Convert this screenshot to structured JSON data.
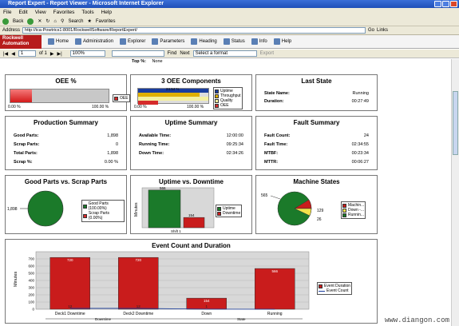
{
  "window": {
    "title": "Report Expert - Report Viewer - Microsoft Internet Explorer"
  },
  "menu": [
    "File",
    "Edit",
    "View",
    "Favorites",
    "Tools",
    "Help"
  ],
  "toolbar": {
    "back": "Back",
    "search": "Search",
    "favorites": "Favorites"
  },
  "address": {
    "label": "Address",
    "url": "http://ica-Powtrics1:8001/RockwellSoftware/ReportExpert/",
    "go": "Go",
    "links": "Links"
  },
  "app": {
    "logo_line1": "Rockwell",
    "logo_line2": "Automation",
    "nav": [
      "Home",
      "Administration",
      "Explorer",
      "Parameters",
      "Heading",
      "Status",
      "Info",
      "Help"
    ]
  },
  "report_bar": {
    "page": "1",
    "of": "of 1",
    "zoom": "100%",
    "find": "Find",
    "next": "Next",
    "format": "Select a format",
    "export": "Export"
  },
  "top_filter": {
    "label": "Top %:",
    "value": "None"
  },
  "oee": {
    "title": "OEE %",
    "min": "0.00 %",
    "max": "100.00 %",
    "legend": "OEE",
    "value_pct": 22
  },
  "oee_components": {
    "title": "3 OEE Components",
    "min": "0.00 %",
    "max": "100.00 %",
    "labels": [
      "0.00 %",
      "0.00 %",
      "24.54 %"
    ],
    "legend": [
      "Uptime",
      "Throughput",
      "Quality",
      "OEE"
    ],
    "colors": [
      "#1a3d9e",
      "#e0b000",
      "#f5f0a0",
      "#d52b2b"
    ]
  },
  "last_state": {
    "title": "Last State",
    "rows": [
      {
        "k": "State Name:",
        "v": "Running"
      },
      {
        "k": "Duration:",
        "v": "00:27:49"
      }
    ]
  },
  "production": {
    "title": "Production Summary",
    "rows": [
      {
        "k": "Good Parts:",
        "v": "1,898"
      },
      {
        "k": "Scrap Parts:",
        "v": "0"
      },
      {
        "k": "Total Parts:",
        "v": "1,898"
      },
      {
        "k": "Scrap %:",
        "v": "0.00 %"
      }
    ]
  },
  "uptime": {
    "title": "Uptime Summary",
    "rows": [
      {
        "k": "Available Time:",
        "v": "12:00:00"
      },
      {
        "k": "Running Time:",
        "v": "09:25:34"
      },
      {
        "k": "Down Time:",
        "v": "02:34:26"
      }
    ]
  },
  "fault": {
    "title": "Fault Summary",
    "rows": [
      {
        "k": "Fault Count:",
        "v": "24"
      },
      {
        "k": "Fault Time:",
        "v": "02:34:55"
      },
      {
        "k": "MTBF:",
        "v": "00:23:34"
      },
      {
        "k": "MTTR:",
        "v": "00:06:27"
      }
    ]
  },
  "good_vs_scrap": {
    "title": "Good Parts vs. Scrap Parts",
    "label": "1,898",
    "legend": [
      "Good Parts (100.00%)",
      "Scrap Parts (0.00%)"
    ]
  },
  "uptime_vs_downtime": {
    "title": "Uptime vs. Downtime",
    "ylabel": "Minutes",
    "x": "Shift 1",
    "values": [
      566,
      154
    ],
    "value_labels": [
      "566",
      "154"
    ],
    "legend": [
      "Uptime",
      "Downtime"
    ]
  },
  "machine_states": {
    "title": "Machine States",
    "labels": [
      "565",
      "129",
      "26"
    ],
    "legend": [
      "Machin...",
      "Down -...",
      "Runnin..."
    ]
  },
  "chart_data": {
    "type": "bar",
    "title": "Event Count and Duration",
    "ylabel": "Minutes",
    "categories": [
      "Deck1 Downtime",
      "Deck2 Downtime",
      "Down",
      "Running"
    ],
    "groups": [
      "Downtime",
      "State"
    ],
    "series": [
      {
        "name": "Event Duration",
        "values": [
          720,
          720,
          154,
          566
        ]
      },
      {
        "name": "Event Count",
        "values": [
          12,
          12,
          1,
          0
        ]
      }
    ],
    "value_labels": [
      "720",
      "720",
      "154",
      "566"
    ],
    "count_labels": [
      "12",
      "12",
      "1",
      ""
    ],
    "yticks": [
      "0",
      "100",
      "200",
      "300",
      "400",
      "500",
      "600",
      "700"
    ],
    "ylim": [
      0,
      800
    ]
  },
  "watermark": "www.diangon.com"
}
